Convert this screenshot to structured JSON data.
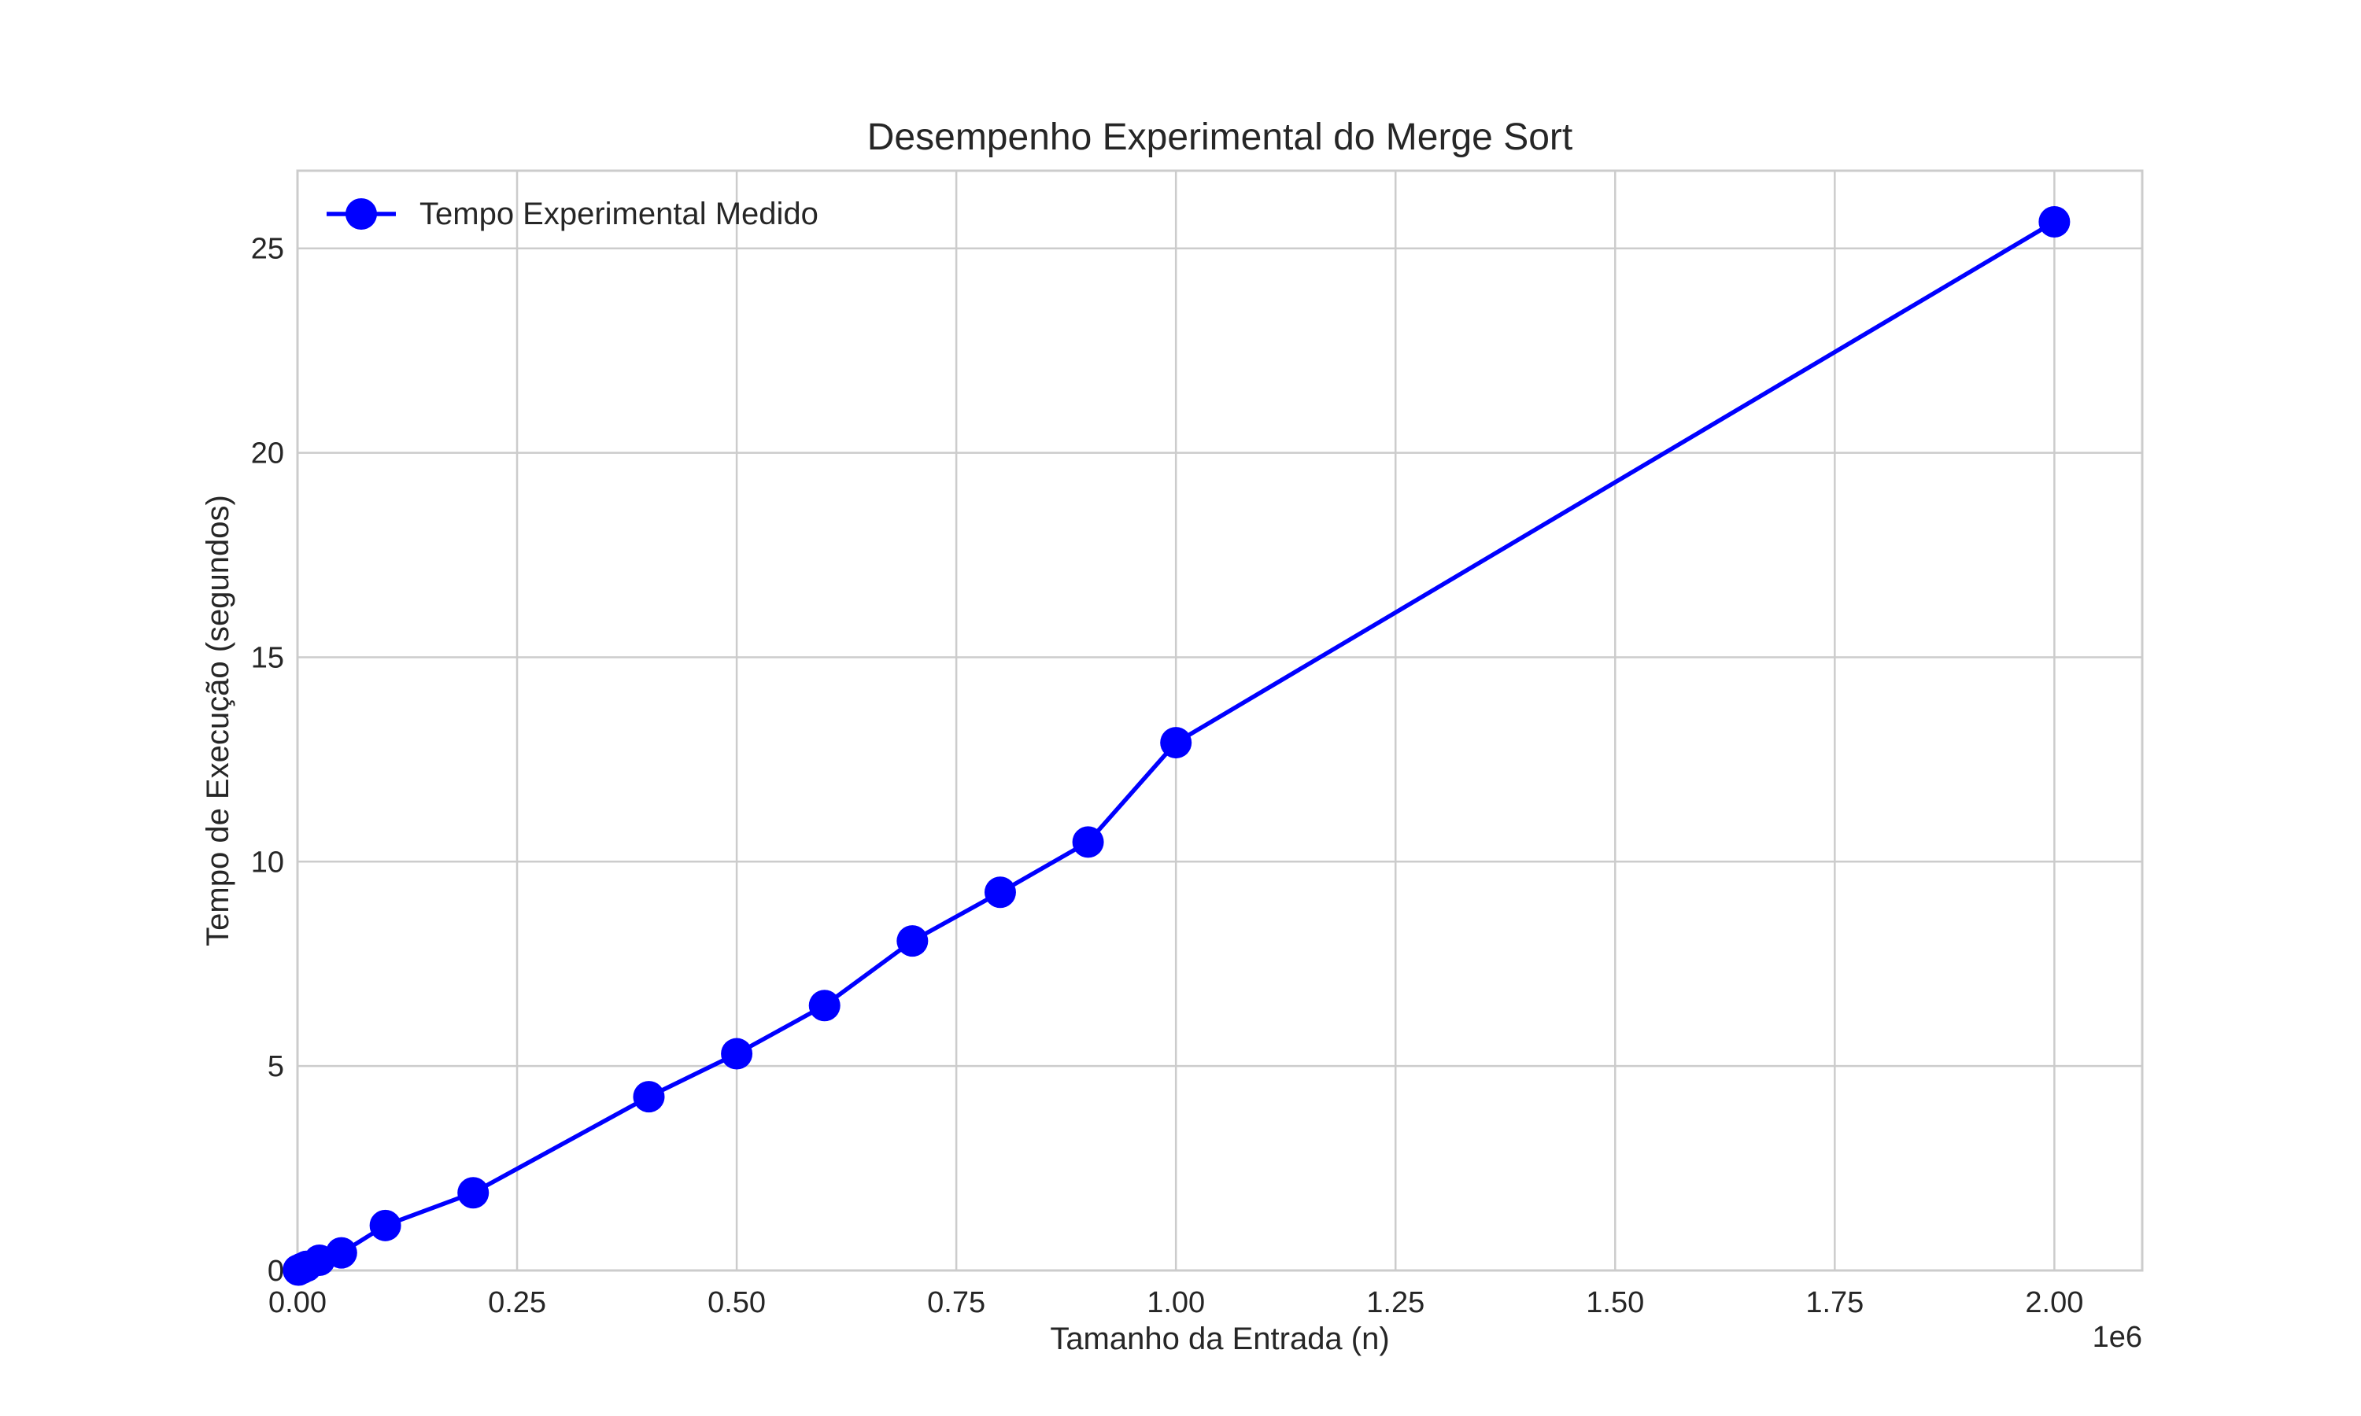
{
  "chart_data": {
    "type": "line",
    "title": "Desempenho Experimental do Merge Sort",
    "xlabel": "Tamanho da Entrada (n)",
    "ylabel": "Tempo de Execução (segundos)",
    "x_offset_label": "1e6",
    "xlim": [
      0,
      2100000
    ],
    "ylim": [
      0,
      26.9
    ],
    "x_tick_values": [
      0,
      250000,
      500000,
      750000,
      1000000,
      1250000,
      1500000,
      1750000,
      2000000
    ],
    "x_tick_labels": [
      "0.00",
      "0.25",
      "0.50",
      "0.75",
      "1.00",
      "1.25",
      "1.50",
      "1.75",
      "2.00"
    ],
    "y_tick_values": [
      0,
      5,
      10,
      15,
      20,
      25
    ],
    "y_tick_labels": [
      "0",
      "5",
      "10",
      "15",
      "20",
      "25"
    ],
    "grid": true,
    "legend_position": "top-left",
    "series": [
      {
        "name": "Tempo Experimental Medido",
        "color": "#0000ff",
        "marker": "circle",
        "x": [
          1000,
          5000,
          10000,
          25000,
          50000,
          100000,
          200000,
          400000,
          500000,
          600000,
          700000,
          800000,
          900000,
          1000000,
          2000000
        ],
        "y": [
          0.01,
          0.05,
          0.1,
          0.25,
          0.43,
          1.1,
          1.9,
          4.25,
          5.3,
          6.48,
          8.06,
          9.25,
          10.48,
          12.91,
          25.65
        ]
      }
    ]
  }
}
